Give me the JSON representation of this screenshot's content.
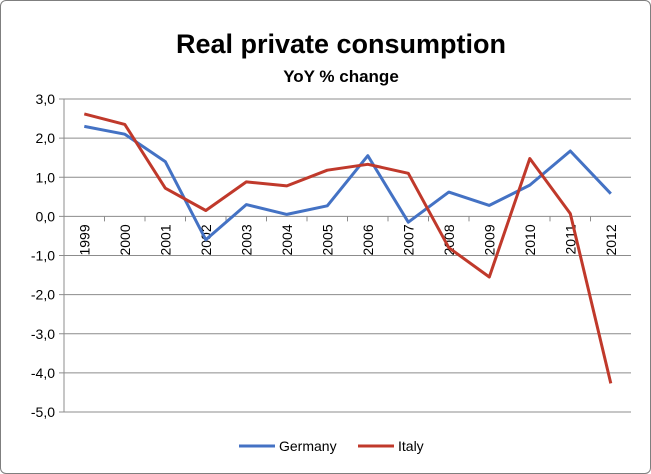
{
  "chart_data": {
    "type": "line",
    "title": "Real private consumption",
    "subtitle": "YoY % change",
    "xlabel": "",
    "ylabel": "",
    "categories": [
      "1999",
      "2000",
      "2001",
      "2002",
      "2003",
      "2004",
      "2005",
      "2006",
      "2007",
      "2008",
      "2009",
      "2010",
      "2011",
      "2012"
    ],
    "ylim": [
      -5.0,
      3.0
    ],
    "ytick_values": [
      3.0,
      2.0,
      1.0,
      0.0,
      -1.0,
      -2.0,
      -3.0,
      -4.0,
      -5.0
    ],
    "ytick_labels": [
      "3,0",
      "2,0",
      "1,0",
      "0,0",
      "-1,0",
      "-2,0",
      "-3,0",
      "-4,0",
      "-5,0"
    ],
    "grid": true,
    "legend_position": "bottom",
    "series": [
      {
        "name": "Germany",
        "color": "#4472c4",
        "values": [
          2.3,
          2.1,
          1.4,
          -0.6,
          0.3,
          0.05,
          0.27,
          1.55,
          -0.15,
          0.62,
          0.28,
          0.8,
          1.67,
          0.58
        ]
      },
      {
        "name": "Italy",
        "color": "#c0392b",
        "values": [
          2.62,
          2.35,
          0.72,
          0.15,
          0.88,
          0.78,
          1.18,
          1.33,
          1.1,
          -0.8,
          -1.55,
          1.48,
          0.07,
          -4.27
        ]
      }
    ]
  }
}
